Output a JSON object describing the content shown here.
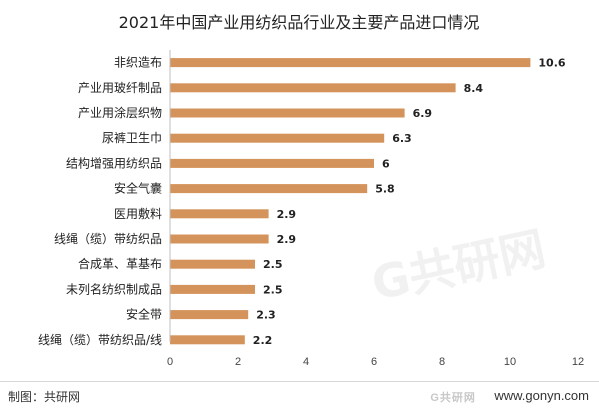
{
  "chart_data": {
    "type": "bar",
    "orientation": "horizontal",
    "title": "2021年中国产业用纺织品行业及主要产品进口情况",
    "categories": [
      "非织造布",
      "产业用玻纤制品",
      "产业用涂层织物",
      "尿裤卫生巾",
      "结构增强用纺织品",
      "安全气囊",
      "医用敷料",
      "线绳（缆）带纺织品",
      "合成革、革基布",
      "未列名纺织制成品",
      "安全带",
      "线绳（缆）带纺织品/线"
    ],
    "values": [
      10.6,
      8.4,
      6.9,
      6.3,
      6,
      5.8,
      2.9,
      2.9,
      2.5,
      2.5,
      2.3,
      2.2
    ],
    "value_labels": [
      "10.6",
      "8.4",
      "6.9",
      "6.3",
      "6",
      "5.8",
      "2.9",
      "2.9",
      "2.5",
      "2.5",
      "2.3",
      "2.2"
    ],
    "xlim": [
      0,
      12
    ],
    "xticks": [
      "0",
      "2",
      "4",
      "6",
      "8",
      "10",
      "12"
    ],
    "bar_color": "#d4935a",
    "grid": false
  },
  "footer": {
    "source": "制图：共研网",
    "site": "www.gonyn.com"
  },
  "watermark": {
    "text": "G共研网",
    "latin": "gonyn.com"
  }
}
